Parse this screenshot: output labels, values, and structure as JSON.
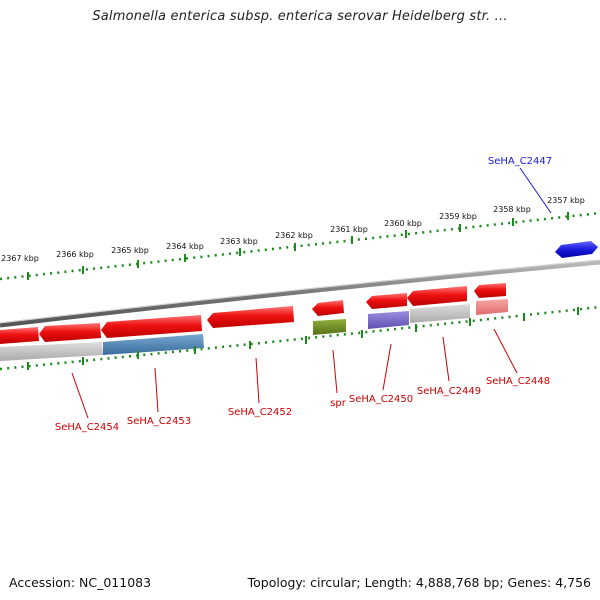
{
  "title": "Salmonella enterica subsp. enterica serovar Heidelberg str. ...",
  "footer": {
    "accession": "Accession: NC_011083",
    "summary": "Topology: circular; Length: 4,888,768 bp; Genes: 4,756"
  },
  "colors": {
    "tick": "#1c8a1c",
    "gene_label": "#cc0000",
    "highlight_label": "#0000cc",
    "cds_red": "#ee1111",
    "backbone": "#888888",
    "cog_grey": "#c0c0c0",
    "cog_blue": "#4a86b8",
    "cog_olive": "#6b8a1e",
    "cog_purple": "#7a6ac8",
    "cog_pink": "#ee8888",
    "highlight_blue": "#1a1adc"
  },
  "scale_labels": [
    "2367 kbp",
    "2366 kbp",
    "2365 kbp",
    "2364 kbp",
    "2363 kbp",
    "2362 kbp",
    "2361 kbp",
    "2360 kbp",
    "2359 kbp",
    "2358 kbp",
    "2357 kbp"
  ],
  "genes": [
    {
      "label": "SeHA_C2447",
      "color": "blue",
      "strand": "forward"
    },
    {
      "label": "SeHA_C2448",
      "color": "red",
      "strand": "reverse"
    },
    {
      "label": "SeHA_C2449",
      "color": "red",
      "strand": "reverse"
    },
    {
      "label": "SeHA_C2450",
      "color": "red",
      "strand": "reverse"
    },
    {
      "label": "spr",
      "color": "red",
      "strand": "reverse"
    },
    {
      "label": "SeHA_C2452",
      "color": "red",
      "strand": "reverse"
    },
    {
      "label": "SeHA_C2453",
      "color": "red",
      "strand": "reverse"
    },
    {
      "label": "SeHA_C2454",
      "color": "red",
      "strand": "reverse"
    }
  ]
}
